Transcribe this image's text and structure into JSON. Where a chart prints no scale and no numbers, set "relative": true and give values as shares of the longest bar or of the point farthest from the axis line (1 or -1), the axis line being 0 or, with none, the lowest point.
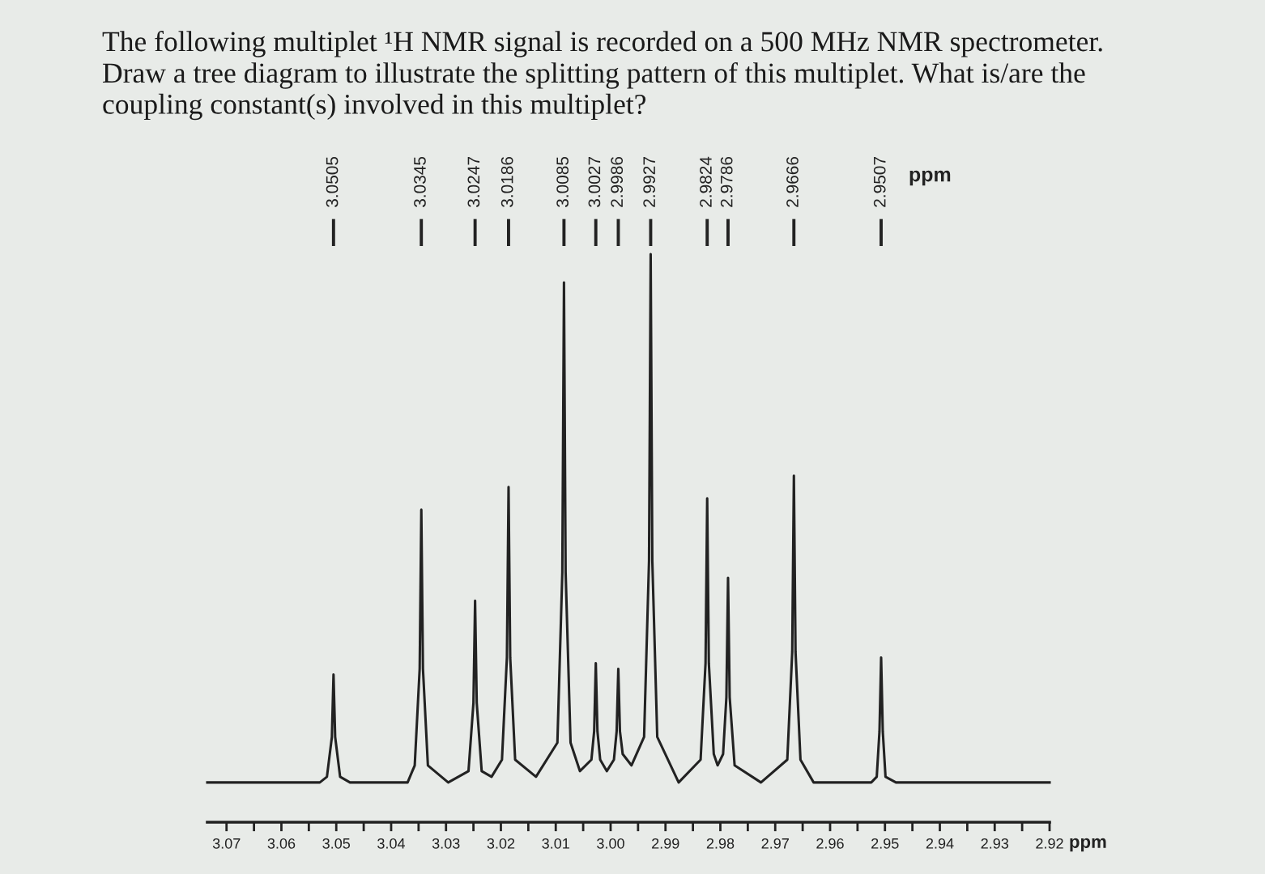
{
  "chart_data": {
    "type": "line",
    "title": "The following multiplet ¹H NMR signal is recorded on a 500 MHz NMR spectrometer.\nDraw a tree diagram to illustrate the splitting pattern of this multiplet. What is/are the\ncoupling constant(s) involved in this multiplet?",
    "xlabel": "ppm",
    "x2label": "ppm",
    "relative": true,
    "tick_labels": "x",
    "grid": false,
    "marker": "none",
    "line_style": "solid",
    "x": [
      3.0735,
      3.053,
      3.0517,
      3.0508,
      3.0505,
      3.0502,
      3.0493,
      3.0475,
      3.04,
      3.037,
      3.0357,
      3.0348,
      3.0345,
      3.0342,
      3.0333,
      3.0296,
      3.0259,
      3.025,
      3.0247,
      3.0244,
      3.0235,
      3.0217,
      3.0198,
      3.0189,
      3.0186,
      3.0183,
      3.0174,
      3.0136,
      3.0097,
      3.0088,
      3.0085,
      3.0082,
      3.0073,
      3.0056,
      3.0035,
      3.003,
      3.0027,
      3.0024,
      3.0019,
      3.0007,
      2.9994,
      2.9989,
      2.9986,
      2.9983,
      2.9978,
      2.9962,
      2.9939,
      2.993,
      2.9927,
      2.9924,
      2.9915,
      2.9876,
      2.9836,
      2.9827,
      2.9824,
      2.9821,
      2.9812,
      2.9805,
      2.9795,
      2.9789,
      2.9786,
      2.9783,
      2.9774,
      2.9726,
      2.9678,
      2.9669,
      2.9666,
      2.9663,
      2.9654,
      2.963,
      2.959,
      2.9525,
      2.9515,
      2.951,
      2.9507,
      2.9504,
      2.9499,
      2.948,
      2.92
    ],
    "series": [
      {
        "color": "#222222",
        "values": [
          0.07,
          0.07,
          0.08,
          0.15,
          0.26,
          0.15,
          0.08,
          0.07,
          0.07,
          0.07,
          0.1,
          0.27,
          0.55,
          0.27,
          0.1,
          0.07,
          0.09,
          0.21,
          0.39,
          0.21,
          0.09,
          0.08,
          0.11,
          0.29,
          0.59,
          0.29,
          0.11,
          0.08,
          0.14,
          0.44,
          0.95,
          0.44,
          0.14,
          0.09,
          0.11,
          0.16,
          0.28,
          0.16,
          0.11,
          0.09,
          0.11,
          0.16,
          0.27,
          0.16,
          0.12,
          0.1,
          0.15,
          0.46,
          1.0,
          0.46,
          0.15,
          0.07,
          0.11,
          0.28,
          0.57,
          0.28,
          0.12,
          0.1,
          0.12,
          0.22,
          0.43,
          0.22,
          0.1,
          0.07,
          0.11,
          0.3,
          0.61,
          0.3,
          0.11,
          0.07,
          0.07,
          0.07,
          0.08,
          0.16,
          0.29,
          0.16,
          0.08,
          0.07,
          0.07
        ]
      }
    ],
    "xlim": [
      3.0735,
      2.92
    ],
    "xticks": [
      3.07,
      3.06,
      3.05,
      3.04,
      3.03,
      3.02,
      3.01,
      {
        "value": 3.0,
        "label": "3.00"
      },
      2.99,
      2.98,
      2.97,
      2.96,
      2.95,
      2.94,
      2.93,
      2.92
    ],
    "x2lim": [
      3.0505,
      2.9507
    ],
    "x2ticks": [
      3.0505,
      3.0345,
      3.0247,
      3.0186,
      3.0085,
      3.0027,
      2.9986,
      2.9927,
      2.9824,
      2.9786,
      2.9666,
      2.9507
    ]
  }
}
